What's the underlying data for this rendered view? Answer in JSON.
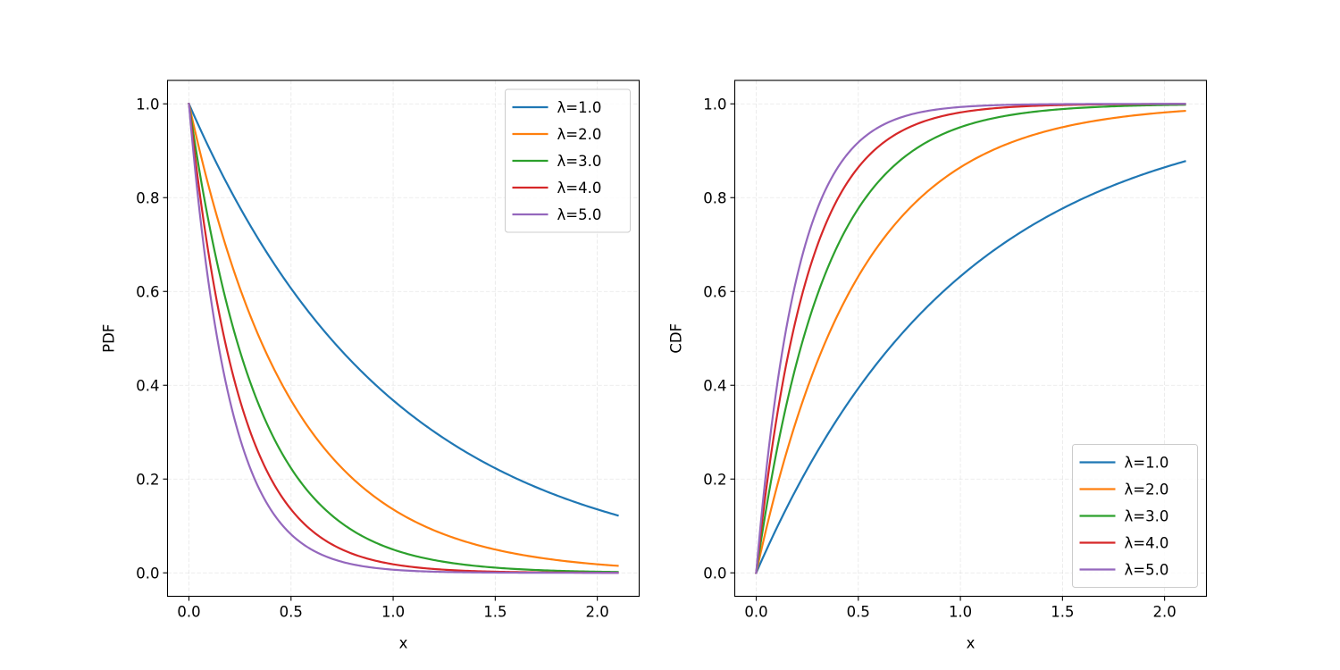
{
  "chart_data": [
    {
      "type": "line",
      "ylabel": "PDF",
      "xlabel": "x",
      "xlim": [
        -0.105,
        2.205
      ],
      "ylim": [
        -0.05,
        1.05
      ],
      "xticks": [
        "0.0",
        "0.5",
        "1.0",
        "1.5",
        "2.0"
      ],
      "yticks": [
        "0.0",
        "0.2",
        "0.4",
        "0.6",
        "0.8",
        "1.0"
      ],
      "grid": true,
      "legend_position": "top-right",
      "x_range": [
        0,
        2.1
      ],
      "series": [
        {
          "name": "λ=1.0",
          "color": "#1f77b4",
          "lambda": 1.0,
          "x": [
            0,
            0.25,
            0.5,
            0.75,
            1.0,
            1.25,
            1.5,
            1.75,
            2.0,
            2.1
          ],
          "values": [
            1.0,
            0.779,
            0.607,
            0.472,
            0.368,
            0.287,
            0.223,
            0.174,
            0.135,
            0.122
          ]
        },
        {
          "name": "λ=2.0",
          "color": "#ff7f0e",
          "lambda": 2.0,
          "x": [
            0,
            0.25,
            0.5,
            0.75,
            1.0,
            1.25,
            1.5,
            1.75,
            2.0,
            2.1
          ],
          "values": [
            1.0,
            0.607,
            0.368,
            0.223,
            0.135,
            0.082,
            0.05,
            0.03,
            0.018,
            0.015
          ]
        },
        {
          "name": "λ=3.0",
          "color": "#2ca02c",
          "lambda": 3.0,
          "x": [
            0,
            0.25,
            0.5,
            0.75,
            1.0,
            1.25,
            1.5,
            1.75,
            2.0,
            2.1
          ],
          "values": [
            1.0,
            0.472,
            0.223,
            0.105,
            0.05,
            0.024,
            0.011,
            0.005,
            0.002,
            0.002
          ]
        },
        {
          "name": "λ=4.0",
          "color": "#d62728",
          "lambda": 4.0,
          "x": [
            0,
            0.25,
            0.5,
            0.75,
            1.0,
            1.25,
            1.5,
            1.75,
            2.0,
            2.1
          ],
          "values": [
            1.0,
            0.368,
            0.135,
            0.05,
            0.018,
            0.007,
            0.002,
            0.001,
            0.0,
            0.0
          ]
        },
        {
          "name": "λ=5.0",
          "color": "#9467bd",
          "lambda": 5.0,
          "x": [
            0,
            0.25,
            0.5,
            0.75,
            1.0,
            1.25,
            1.5,
            1.75,
            2.0,
            2.1
          ],
          "values": [
            1.0,
            0.287,
            0.082,
            0.024,
            0.007,
            0.002,
            0.001,
            0.0,
            0.0,
            0.0
          ]
        }
      ]
    },
    {
      "type": "line",
      "ylabel": "CDF",
      "xlabel": "x",
      "xlim": [
        -0.105,
        2.205
      ],
      "ylim": [
        -0.05,
        1.05
      ],
      "xticks": [
        "0.0",
        "0.5",
        "1.0",
        "1.5",
        "2.0"
      ],
      "yticks": [
        "0.0",
        "0.2",
        "0.4",
        "0.6",
        "0.8",
        "1.0"
      ],
      "grid": true,
      "legend_position": "bottom-right",
      "x_range": [
        0,
        2.1
      ],
      "series": [
        {
          "name": "λ=1.0",
          "color": "#1f77b4",
          "lambda": 1.0,
          "x": [
            0,
            0.25,
            0.5,
            0.75,
            1.0,
            1.25,
            1.5,
            1.75,
            2.0,
            2.1
          ],
          "values": [
            0.0,
            0.221,
            0.393,
            0.528,
            0.632,
            0.713,
            0.777,
            0.826,
            0.865,
            0.878
          ]
        },
        {
          "name": "λ=2.0",
          "color": "#ff7f0e",
          "lambda": 2.0,
          "x": [
            0,
            0.25,
            0.5,
            0.75,
            1.0,
            1.25,
            1.5,
            1.75,
            2.0,
            2.1
          ],
          "values": [
            0.0,
            0.393,
            0.632,
            0.777,
            0.865,
            0.918,
            0.95,
            0.97,
            0.982,
            0.985
          ]
        },
        {
          "name": "λ=3.0",
          "color": "#2ca02c",
          "lambda": 3.0,
          "x": [
            0,
            0.25,
            0.5,
            0.75,
            1.0,
            1.25,
            1.5,
            1.75,
            2.0,
            2.1
          ],
          "values": [
            0.0,
            0.528,
            0.777,
            0.895,
            0.95,
            0.976,
            0.989,
            0.995,
            0.998,
            0.998
          ]
        },
        {
          "name": "λ=4.0",
          "color": "#d62728",
          "lambda": 4.0,
          "x": [
            0,
            0.25,
            0.5,
            0.75,
            1.0,
            1.25,
            1.5,
            1.75,
            2.0,
            2.1
          ],
          "values": [
            0.0,
            0.632,
            0.865,
            0.95,
            0.982,
            0.993,
            0.998,
            0.999,
            1.0,
            1.0
          ]
        },
        {
          "name": "λ=5.0",
          "color": "#9467bd",
          "lambda": 5.0,
          "x": [
            0,
            0.25,
            0.5,
            0.75,
            1.0,
            1.25,
            1.5,
            1.75,
            2.0,
            2.1
          ],
          "values": [
            0.0,
            0.713,
            0.918,
            0.976,
            0.993,
            0.998,
            0.999,
            1.0,
            1.0,
            1.0
          ]
        }
      ]
    }
  ]
}
